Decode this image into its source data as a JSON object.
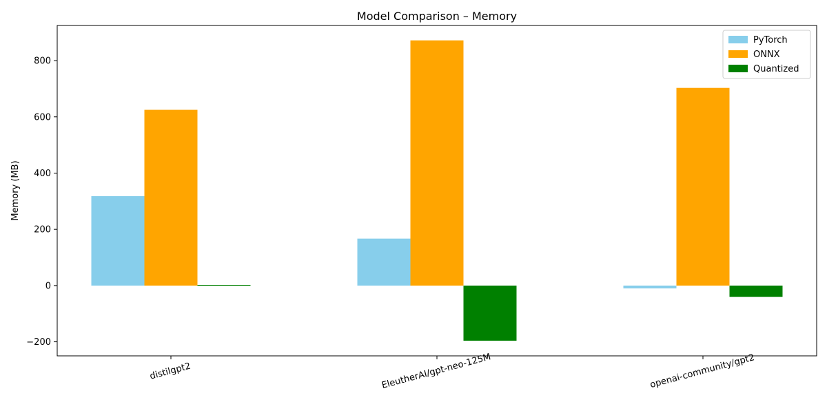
{
  "chart_data": {
    "type": "bar",
    "title": "Model Comparison – Memory",
    "xlabel": "",
    "ylabel": "Memory (MB)",
    "categories": [
      "distilgpt2",
      "EleutherAI/gpt-neo-125M",
      "openai-community/gpt2"
    ],
    "series": [
      {
        "name": "PyTorch",
        "color": "#87ceeb",
        "values": [
          318,
          167,
          -10
        ]
      },
      {
        "name": "ONNX",
        "color": "#ffa500",
        "values": [
          625,
          872,
          703
        ]
      },
      {
        "name": "Quantized",
        "color": "#008000",
        "values": [
          2,
          -196,
          -40
        ]
      }
    ],
    "ylim": [
      -250,
      925
    ],
    "yticks": [
      -200,
      0,
      200,
      400,
      600,
      800
    ],
    "grid": false,
    "legend_position": "top-right"
  }
}
